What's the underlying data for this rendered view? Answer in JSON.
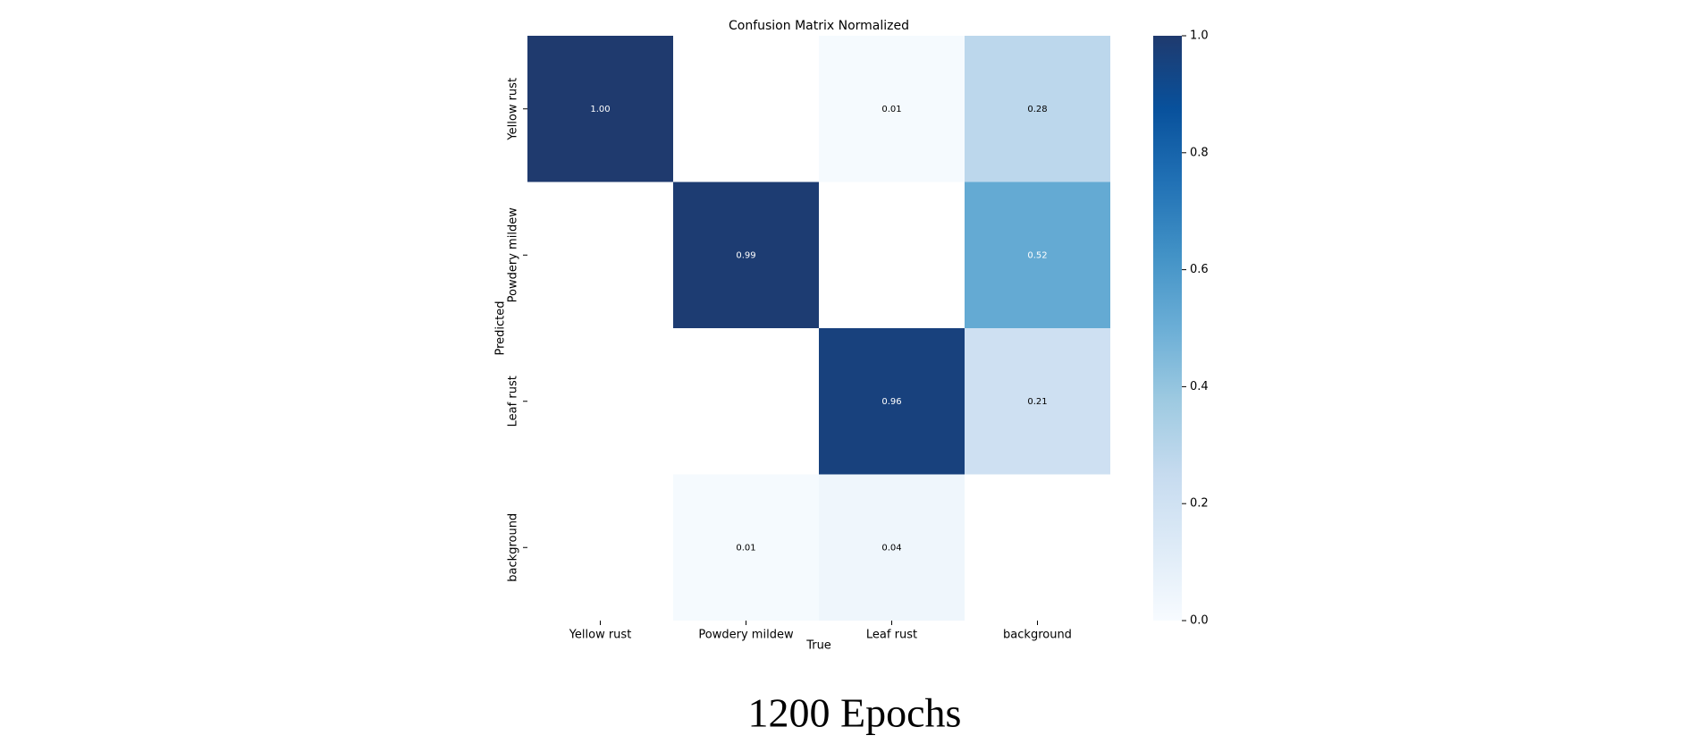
{
  "chart_data": {
    "type": "heatmap",
    "title": "Confusion Matrix Normalized",
    "x_label": "True",
    "y_label": "Predicted",
    "x_categories": [
      "Yellow rust",
      "Powdery mildew",
      "Leaf rust",
      "background"
    ],
    "y_categories": [
      "Yellow rust",
      "Powdery mildew",
      "Leaf rust",
      "background"
    ],
    "values": [
      [
        1.0,
        null,
        0.01,
        0.28
      ],
      [
        null,
        0.99,
        null,
        0.52
      ],
      [
        null,
        null,
        0.96,
        0.21
      ],
      [
        null,
        0.01,
        0.04,
        null
      ]
    ],
    "value_labels": [
      [
        "1.00",
        null,
        "0.01",
        "0.28"
      ],
      [
        null,
        "0.99",
        null,
        "0.52"
      ],
      [
        null,
        null,
        "0.96",
        "0.21"
      ],
      [
        null,
        "0.01",
        "0.04",
        null
      ]
    ],
    "colormap": "Blues",
    "zlim": [
      0,
      1
    ],
    "zticks": [
      {
        "value": 0,
        "label": "0.0"
      },
      0.2,
      0.4,
      0.6,
      0.8,
      {
        "value": 1,
        "label": "1.0"
      }
    ],
    "caption": "1200 Epochs"
  }
}
